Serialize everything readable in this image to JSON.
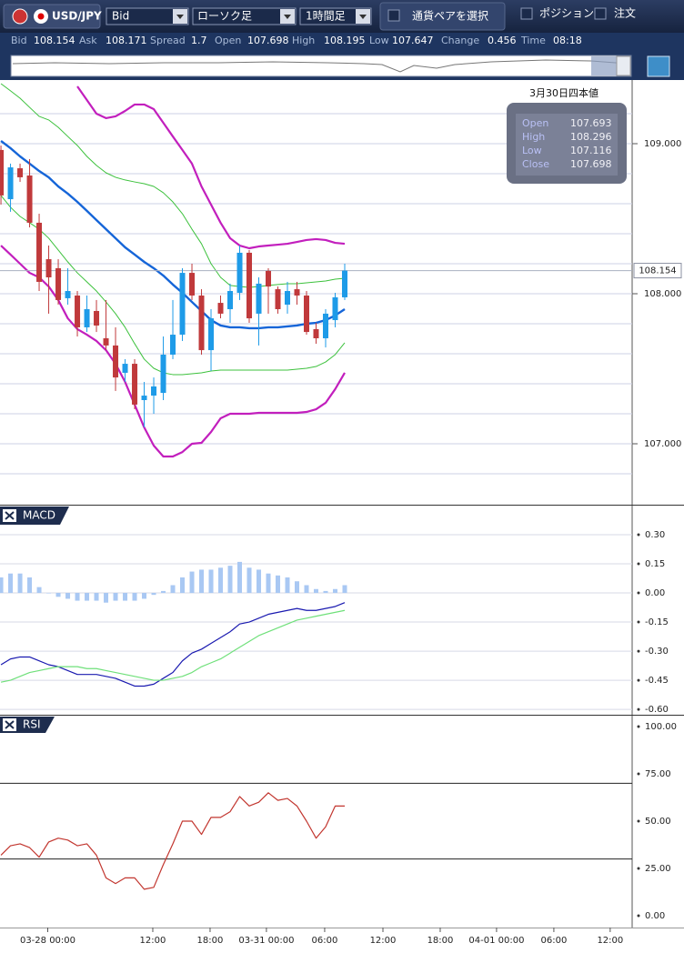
{
  "toolbar": {
    "pair": "USD/JPY",
    "price_type": "Bid",
    "chart_type": "ローソク足",
    "timeframe": "1時間足",
    "select_pair": "通貨ペアを選択",
    "position": "ポジション",
    "order": "注文"
  },
  "quote": [
    {
      "label": "Bid",
      "value": 108.154
    },
    {
      "label": "Ask",
      "value": 108.171
    },
    {
      "label": "Spread",
      "value": 1.7
    },
    {
      "label": "Open",
      "value": 107.698
    },
    {
      "label": "High",
      "value": 108.195
    },
    {
      "label": "Low",
      "value": 107.647
    },
    {
      "label": "Change",
      "value": 0.456
    },
    {
      "label": "Time",
      "value": "08:18"
    }
  ],
  "chart_data": [
    {
      "type": "candlestick",
      "xlim": [
        -0.1,
        66.1
      ],
      "ylim": [
        106.594,
        109.412
      ],
      "yticks": [
        {
          "value": 107,
          "label": "107.000"
        },
        {
          "value": 108,
          "label": "108.000"
        },
        {
          "value": 109,
          "label": "109.000"
        }
      ],
      "gridlines": [
        106.8,
        107.0,
        107.2,
        107.4,
        107.6,
        107.8,
        108.0,
        108.2,
        108.4,
        108.6,
        108.8,
        109.0,
        109.2
      ],
      "up_color": "#1e9be8",
      "down_color": "#c0393b",
      "open": [
        108.958,
        108.63,
        108.836,
        108.788,
        108.473,
        108.23,
        108.17,
        107.97,
        107.988,
        107.776,
        107.885,
        107.703,
        107.655,
        107.473,
        107.533,
        107.291,
        107.321,
        107.339,
        107.594,
        107.727,
        108.139,
        107.988,
        107.624,
        107.939,
        107.897,
        108.006,
        108.273,
        107.867,
        108.152,
        108.03,
        107.927,
        108.03,
        107.988,
        107.764,
        107.703,
        107.824,
        107.976
      ],
      "high": [
        108.988,
        108.867,
        108.867,
        108.897,
        108.533,
        108.321,
        108.23,
        108.17,
        108.018,
        107.988,
        107.958,
        107.958,
        107.776,
        107.564,
        107.564,
        107.412,
        107.442,
        107.715,
        107.958,
        108.17,
        108.2,
        108.03,
        107.897,
        107.988,
        108.067,
        108.321,
        108.291,
        108.109,
        108.17,
        108.048,
        108.079,
        108.079,
        108.018,
        107.806,
        107.897,
        108.006,
        108.2
      ],
      "low": [
        108.594,
        108.546,
        108.745,
        108.442,
        108.018,
        107.867,
        107.927,
        107.927,
        107.715,
        107.745,
        107.745,
        107.624,
        107.352,
        107.412,
        107.23,
        107.109,
        107.2,
        107.291,
        107.564,
        107.685,
        107.958,
        107.594,
        107.485,
        107.836,
        107.806,
        107.958,
        107.806,
        107.655,
        107.867,
        107.867,
        107.867,
        107.927,
        107.727,
        107.667,
        107.642,
        107.776,
        107.958
      ],
      "close": [
        108.655,
        108.842,
        108.776,
        108.473,
        108.079,
        108.109,
        107.958,
        108.018,
        107.776,
        107.897,
        107.788,
        107.655,
        107.442,
        107.533,
        107.261,
        107.321,
        107.382,
        107.594,
        107.727,
        108.139,
        107.988,
        107.624,
        107.836,
        107.867,
        108.018,
        108.273,
        107.836,
        108.067,
        108.048,
        107.897,
        108.018,
        107.988,
        107.745,
        107.703,
        107.867,
        107.976,
        108.154
      ],
      "series": [
        {
          "color": "#c21fbd",
          "width": 2.2,
          "values": [
            null,
            null,
            null,
            null,
            null,
            null,
            null,
            null,
            109.382,
            109.291,
            109.2,
            109.17,
            109.182,
            109.218,
            109.261,
            109.261,
            109.23,
            109.139,
            109.048,
            108.958,
            108.867,
            108.715,
            108.594,
            108.473,
            108.37,
            108.321,
            108.303,
            108.315,
            108.321,
            108.327,
            108.333,
            108.345,
            108.358,
            108.364,
            108.358,
            108.339,
            108.333
          ]
        },
        {
          "color": "#3cc13c",
          "width": 1,
          "values": [
            109.4,
            109.352,
            109.303,
            109.242,
            109.182,
            109.158,
            109.109,
            109.048,
            108.988,
            108.915,
            108.855,
            108.806,
            108.776,
            108.758,
            108.745,
            108.733,
            108.715,
            108.673,
            108.612,
            108.533,
            108.43,
            108.333,
            108.2,
            108.109,
            108.055,
            108.048,
            108.042,
            108.048,
            108.055,
            108.061,
            108.067,
            108.067,
            108.073,
            108.079,
            108.085,
            108.097,
            108.103
          ]
        },
        {
          "color": "#1565d8",
          "width": 2.4,
          "values": [
            109.018,
            108.97,
            108.915,
            108.867,
            108.818,
            108.776,
            108.715,
            108.667,
            108.612,
            108.552,
            108.491,
            108.43,
            108.37,
            108.309,
            108.261,
            108.212,
            108.17,
            108.121,
            108.061,
            108.006,
            107.945,
            107.885,
            107.824,
            107.788,
            107.776,
            107.776,
            107.77,
            107.77,
            107.776,
            107.776,
            107.782,
            107.788,
            107.8,
            107.806,
            107.824,
            107.855,
            107.897
          ]
        },
        {
          "color": "#3cc13c",
          "width": 1,
          "values": [
            108.655,
            108.576,
            108.515,
            108.473,
            108.43,
            108.37,
            108.291,
            108.212,
            108.139,
            108.079,
            108.018,
            107.945,
            107.867,
            107.776,
            107.667,
            107.564,
            107.503,
            107.473,
            107.461,
            107.461,
            107.467,
            107.473,
            107.485,
            107.491,
            107.491,
            107.491,
            107.491,
            107.491,
            107.491,
            107.491,
            107.491,
            107.497,
            107.503,
            107.515,
            107.545,
            107.594,
            107.673
          ]
        },
        {
          "color": "#c21fbd",
          "width": 2.2,
          "values": [
            108.321,
            108.261,
            108.2,
            108.139,
            108.109,
            108.048,
            107.958,
            107.836,
            107.764,
            107.727,
            107.685,
            107.624,
            107.533,
            107.412,
            107.261,
            107.109,
            106.988,
            106.915,
            106.915,
            106.945,
            107.0,
            107.006,
            107.079,
            107.17,
            107.2,
            107.2,
            107.2,
            107.206,
            107.206,
            107.206,
            107.206,
            107.206,
            107.212,
            107.23,
            107.273,
            107.364,
            107.473
          ]
        }
      ],
      "last_price": 108.154,
      "ohlc_panel": {
        "title": "3月30日四本値",
        "rows": [
          {
            "label": "Open",
            "value": 107.693
          },
          {
            "label": "High",
            "value": 108.296
          },
          {
            "label": "Low",
            "value": 107.116
          },
          {
            "label": "Close",
            "value": 107.698
          }
        ]
      }
    },
    {
      "type": "macd",
      "title": "MACD",
      "xlim": [
        -0.1,
        66.1
      ],
      "ylim": [
        -0.623,
        0.45
      ],
      "grid": true,
      "yticks": [
        {
          "value": 0.3,
          "label": "0.30"
        },
        {
          "value": 0.15,
          "label": "0.15"
        },
        {
          "value": 0,
          "label": "0.00"
        },
        {
          "value": -0.15,
          "label": "-0.15"
        },
        {
          "value": -0.3,
          "label": "-0.30"
        },
        {
          "value": -0.45,
          "label": "-0.45"
        },
        {
          "value": -0.6,
          "label": "-0.60"
        }
      ],
      "histogram": {
        "color": "#a9c8f3",
        "values": [
          0.08,
          0.1,
          0.1,
          0.08,
          0.03,
          0.0,
          -0.02,
          -0.03,
          -0.04,
          -0.04,
          -0.04,
          -0.05,
          -0.04,
          -0.04,
          -0.04,
          -0.03,
          -0.01,
          0.01,
          0.04,
          0.08,
          0.11,
          0.12,
          0.12,
          0.13,
          0.14,
          0.16,
          0.13,
          0.12,
          0.1,
          0.09,
          0.08,
          0.06,
          0.04,
          0.02,
          0.01,
          0.02,
          0.04
        ]
      },
      "series": [
        {
          "color": "#1a1ab0",
          "values": [
            -0.37,
            -0.34,
            -0.33,
            -0.33,
            -0.35,
            -0.37,
            -0.38,
            -0.4,
            -0.42,
            -0.42,
            -0.42,
            -0.43,
            -0.44,
            -0.46,
            -0.48,
            -0.48,
            -0.47,
            -0.44,
            -0.41,
            -0.35,
            -0.31,
            -0.29,
            -0.26,
            -0.23,
            -0.2,
            -0.16,
            -0.15,
            -0.13,
            -0.11,
            -0.1,
            -0.09,
            -0.08,
            -0.09,
            -0.09,
            -0.08,
            -0.07,
            -0.05
          ]
        },
        {
          "color": "#6fe07a",
          "values": [
            -0.46,
            -0.45,
            -0.43,
            -0.41,
            -0.4,
            -0.39,
            -0.38,
            -0.38,
            -0.38,
            -0.39,
            -0.39,
            -0.4,
            -0.41,
            -0.42,
            -0.43,
            -0.44,
            -0.45,
            -0.45,
            -0.44,
            -0.43,
            -0.41,
            -0.38,
            -0.36,
            -0.34,
            -0.31,
            -0.28,
            -0.25,
            -0.22,
            -0.2,
            -0.18,
            -0.16,
            -0.14,
            -0.13,
            -0.12,
            -0.11,
            -0.1,
            -0.09
          ]
        }
      ]
    },
    {
      "type": "line",
      "title": "RSI",
      "xlim": [
        -0.1,
        66.1
      ],
      "ylim": [
        -6.25,
        105.77
      ],
      "grid": false,
      "levels": [
        70,
        30
      ],
      "yticks": [
        {
          "value": 100,
          "label": "100.00"
        },
        {
          "value": 75,
          "label": "75.00"
        },
        {
          "value": 50,
          "label": "50.00"
        },
        {
          "value": 25,
          "label": "25.00"
        },
        {
          "value": 0,
          "label": "0.00"
        }
      ],
      "xticks": [
        {
          "value": 4.9,
          "label": "03-28 00:00"
        },
        {
          "value": 15.9,
          "label": "12:00"
        },
        {
          "value": 21.9,
          "label": "18:00"
        },
        {
          "value": 27.8,
          "label": "03-31 00:00"
        },
        {
          "value": 33.9,
          "label": "06:00"
        },
        {
          "value": 40,
          "label": "12:00"
        },
        {
          "value": 46,
          "label": "18:00"
        },
        {
          "value": 51.9,
          "label": "04-01 00:00"
        },
        {
          "value": 57.9,
          "label": "06:00"
        },
        {
          "value": 63.8,
          "label": "12:00"
        }
      ],
      "series": [
        {
          "color": "#c2362f",
          "values": [
            32,
            37,
            38,
            36,
            31,
            39,
            41,
            40,
            37,
            38,
            32,
            20,
            17,
            20,
            20,
            14,
            15,
            27,
            38,
            50,
            50,
            43,
            52,
            52,
            55,
            63,
            58,
            60,
            65,
            61,
            62,
            58,
            50,
            41,
            47,
            58,
            58
          ]
        }
      ]
    }
  ]
}
